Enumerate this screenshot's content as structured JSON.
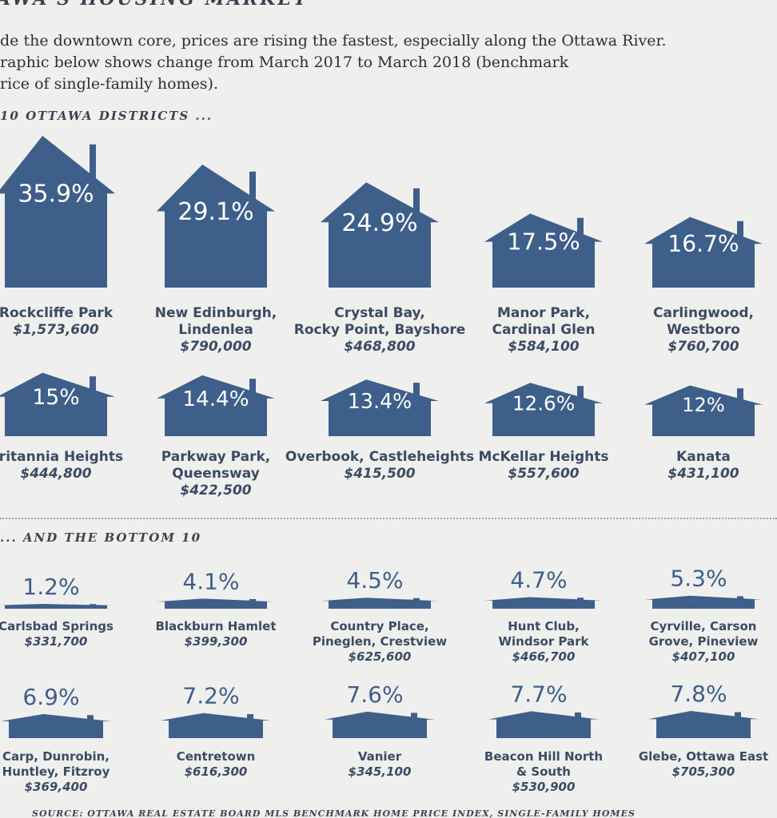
{
  "headline": "AWA'S HOUSING MARKET",
  "intro": [
    "de the downtown core, prices are rising the fastest, especially along the Ottawa River.",
    "raphic below shows change from March 2017 to March 2018 (benchmark",
    "rice of single-family homes)."
  ],
  "top_title": "10 OTTAWA DISTRICTS ...",
  "bottom_title": "... AND THE BOTTOM 10",
  "source": "SOURCE: OTTAWA REAL ESTATE BOARD MLS BENCHMARK HOME PRICE INDEX, SINGLE-FAMILY HOMES",
  "colors": {
    "house": "#3e5f8a",
    "label": "#3b4b64",
    "background": "#efefed"
  },
  "chart_data": {
    "type": "bar",
    "unit": "%",
    "top": [
      {
        "name": "Rockcliffe Park",
        "price": "$1,573,600",
        "value": 35.9,
        "label": "35.9%"
      },
      {
        "name": "New Edinburgh,\nLindenlea",
        "price": "$790,000",
        "value": 29.1,
        "label": "29.1%"
      },
      {
        "name": "Crystal Bay,\nRocky Point, Bayshore",
        "price": "$468,800",
        "value": 24.9,
        "label": "24.9%"
      },
      {
        "name": "Manor Park,\nCardinal Glen",
        "price": "$584,100",
        "value": 17.5,
        "label": "17.5%"
      },
      {
        "name": "Carlingwood,\nWestboro",
        "price": "$760,700",
        "value": 16.7,
        "label": "16.7%"
      },
      {
        "name": "Britannia Heights",
        "price": "$444,800",
        "value": 15,
        "label": "15%"
      },
      {
        "name": "Parkway Park,\nQueensway",
        "price": "$422,500",
        "value": 14.4,
        "label": "14.4%"
      },
      {
        "name": "Overbook, Castleheights",
        "price": "$415,500",
        "value": 13.4,
        "label": "13.4%"
      },
      {
        "name": "McKellar Heights",
        "price": "$557,600",
        "value": 12.6,
        "label": "12.6%"
      },
      {
        "name": "Kanata",
        "price": "$431,100",
        "value": 12,
        "label": "12%"
      }
    ],
    "bottom": [
      {
        "name": "Carlsbad Springs",
        "price": "$331,700",
        "value": 1.2,
        "label": "1.2%"
      },
      {
        "name": "Blackburn Hamlet",
        "price": "$399,300",
        "value": 4.1,
        "label": "4.1%"
      },
      {
        "name": "Country Place,\nPineglen, Crestview",
        "price": "$625,600",
        "value": 4.5,
        "label": "4.5%"
      },
      {
        "name": "Hunt Club,\nWindsor Park",
        "price": "$466,700",
        "value": 4.7,
        "label": "4.7%"
      },
      {
        "name": "Cyrville, Carson\nGrove, Pineview",
        "price": "$407,100",
        "value": 5.3,
        "label": "5.3%"
      },
      {
        "name": "Carp, Dunrobin,\nHuntley, Fitzroy",
        "price": "$369,400",
        "value": 6.9,
        "label": "6.9%"
      },
      {
        "name": "Centretown",
        "price": "$616,300",
        "value": 7.2,
        "label": "7.2%"
      },
      {
        "name": "Vanier",
        "price": "$345,100",
        "value": 7.6,
        "label": "7.6%"
      },
      {
        "name": "Beacon Hill North\n& South",
        "price": "$530,900",
        "value": 7.7,
        "label": "7.7%"
      },
      {
        "name": "Glebe, Ottawa East",
        "price": "$705,300",
        "value": 7.8,
        "label": "7.8%"
      }
    ]
  }
}
